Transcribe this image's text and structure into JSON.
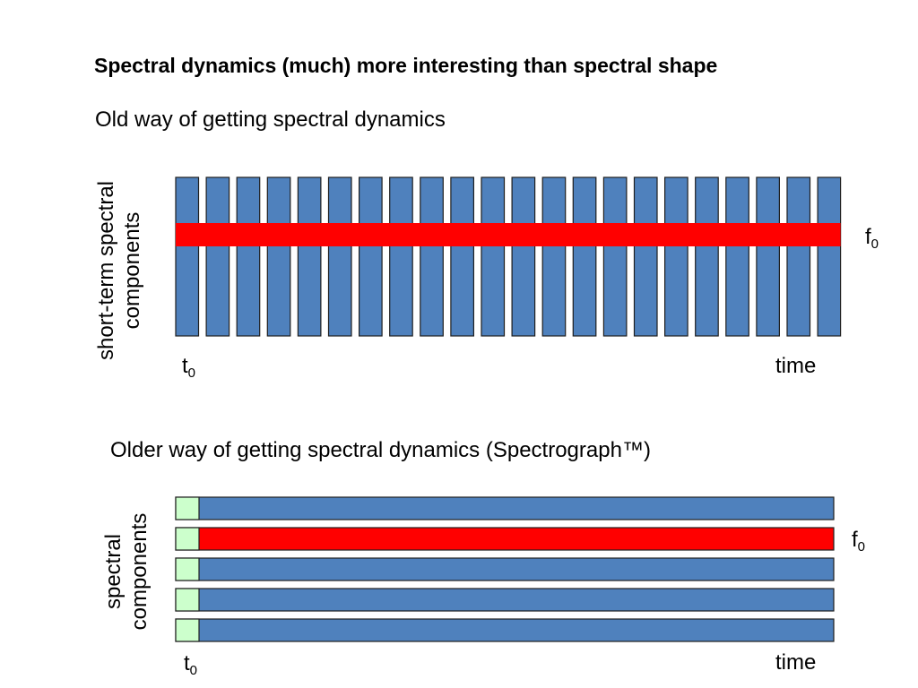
{
  "title": "Spectral dynamics (much) more interesting than spectral shape",
  "section1": {
    "heading": "Old way of getting spectral dynamics",
    "y_label_line1": "short-term spectral",
    "y_label_line2": "components",
    "t0_base": "t",
    "t0_sub": "0",
    "time_label": "time",
    "f0_base": "f",
    "f0_sub": "0",
    "frame_count": 22,
    "colors": {
      "frame": "#4f81bd",
      "highlight": "#ff0000",
      "outline": "#1f1f1f"
    }
  },
  "section2": {
    "heading": "Older way of getting spectral dynamics (Spectrograph™)",
    "y_label_line1": "spectral",
    "y_label_line2": "components",
    "t0_base": "t",
    "t0_sub": "0",
    "time_label": "time",
    "f0_base": "f",
    "f0_sub": "0",
    "band_count": 5,
    "highlighted_band": 2,
    "colors": {
      "band": "#4f81bd",
      "highlight": "#ff0000",
      "start_cell": "#ccffcc",
      "outline": "#1f1f1f"
    }
  }
}
